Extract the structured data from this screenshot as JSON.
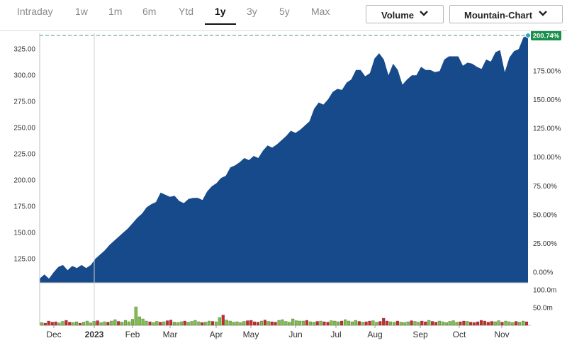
{
  "tabs": [
    {
      "label": "Intraday"
    },
    {
      "label": "1w"
    },
    {
      "label": "1m"
    },
    {
      "label": "6m"
    },
    {
      "label": "Ytd"
    },
    {
      "label": "1y",
      "active": true
    },
    {
      "label": "3y"
    },
    {
      "label": "5y"
    },
    {
      "label": "Max"
    }
  ],
  "controls": {
    "volume_label": "Volume",
    "chart_type_label": "Mountain-Chart"
  },
  "colors": {
    "area": "#174a8b",
    "badge": "#1a8f4c",
    "volume_up": "#7cc043",
    "volume_down": "#cc2a2a",
    "reference_line": "#43a074"
  },
  "chart_data": {
    "type": "area",
    "left_axis": {
      "ticks": [
        "125.00",
        "150.00",
        "175.00",
        "200.00",
        "225.00",
        "250.00",
        "275.00",
        "300.00",
        "325.00"
      ],
      "values": [
        125,
        150,
        175,
        200,
        225,
        250,
        275,
        300,
        325
      ],
      "ylim": [
        102,
        340
      ]
    },
    "right_axis": {
      "ticks": [
        "0.00%",
        "25.00%",
        "50.00%",
        "75.00%",
        "100.00%",
        "125.00%",
        "150.00%",
        "175.00%"
      ]
    },
    "current_change": "200.74%",
    "x_labels": [
      "Dec",
      "2023",
      "Feb",
      "Mar",
      "Apr",
      "May",
      "Jun",
      "Jul",
      "Aug",
      "Sep",
      "Oct",
      "Nov"
    ],
    "series": [
      {
        "values": [
          106,
          110,
          106,
          112,
          117,
          119,
          114,
          118,
          116,
          119,
          116,
          119,
          125,
          129,
          133,
          138,
          142,
          146,
          150,
          154,
          159,
          164,
          168,
          174,
          177,
          179,
          188,
          186,
          184,
          185,
          180,
          178,
          182,
          183,
          183,
          181,
          189,
          194,
          197,
          202,
          204,
          212,
          214,
          217,
          221,
          219,
          223,
          221,
          228,
          233,
          231,
          234,
          238,
          242,
          247,
          245,
          248,
          252,
          256,
          268,
          274,
          272,
          277,
          284,
          287,
          286,
          293,
          296,
          305,
          305,
          299,
          302,
          316,
          321,
          315,
          300,
          311,
          305,
          291,
          296,
          300,
          300,
          308,
          305,
          305,
          303,
          304,
          315,
          318,
          318,
          318,
          309,
          312,
          311,
          308,
          306,
          315,
          313,
          322,
          324,
          303,
          317,
          323,
          325,
          336,
          338
        ]
      }
    ],
    "volume_axis": {
      "ticks": [
        "50.0m",
        "100.0m"
      ],
      "values": [
        50,
        100
      ],
      "ylim": [
        0,
        120
      ]
    },
    "volume": [
      8,
      6,
      12,
      9,
      10,
      7,
      11,
      14,
      9,
      8,
      10,
      6,
      9,
      12,
      7,
      11,
      13,
      8,
      10,
      9,
      12,
      16,
      11,
      9,
      14,
      10,
      17,
      52,
      24,
      18,
      12,
      10,
      8,
      11,
      9,
      10,
      13,
      15,
      9,
      8,
      10,
      12,
      9,
      11,
      14,
      10,
      8,
      9,
      12,
      11,
      10,
      22,
      29,
      15,
      12,
      9,
      10,
      8,
      11,
      13,
      14,
      10,
      9,
      12,
      15,
      11,
      10,
      9,
      14,
      16,
      11,
      9,
      18,
      13,
      12,
      12,
      14,
      10,
      9,
      11,
      12,
      10,
      9,
      13,
      12,
      10,
      12,
      16,
      12,
      10,
      14,
      11,
      9,
      10,
      12,
      13,
      9,
      11,
      20,
      12,
      10,
      9,
      12,
      9,
      8,
      10,
      13,
      11,
      9,
      12,
      10,
      14,
      11,
      9,
      12,
      10,
      8,
      11,
      13,
      9,
      10,
      12,
      11,
      9,
      8,
      10,
      14,
      12,
      9,
      11,
      10,
      13,
      9,
      12,
      10,
      8,
      11,
      9,
      12,
      10
    ]
  }
}
